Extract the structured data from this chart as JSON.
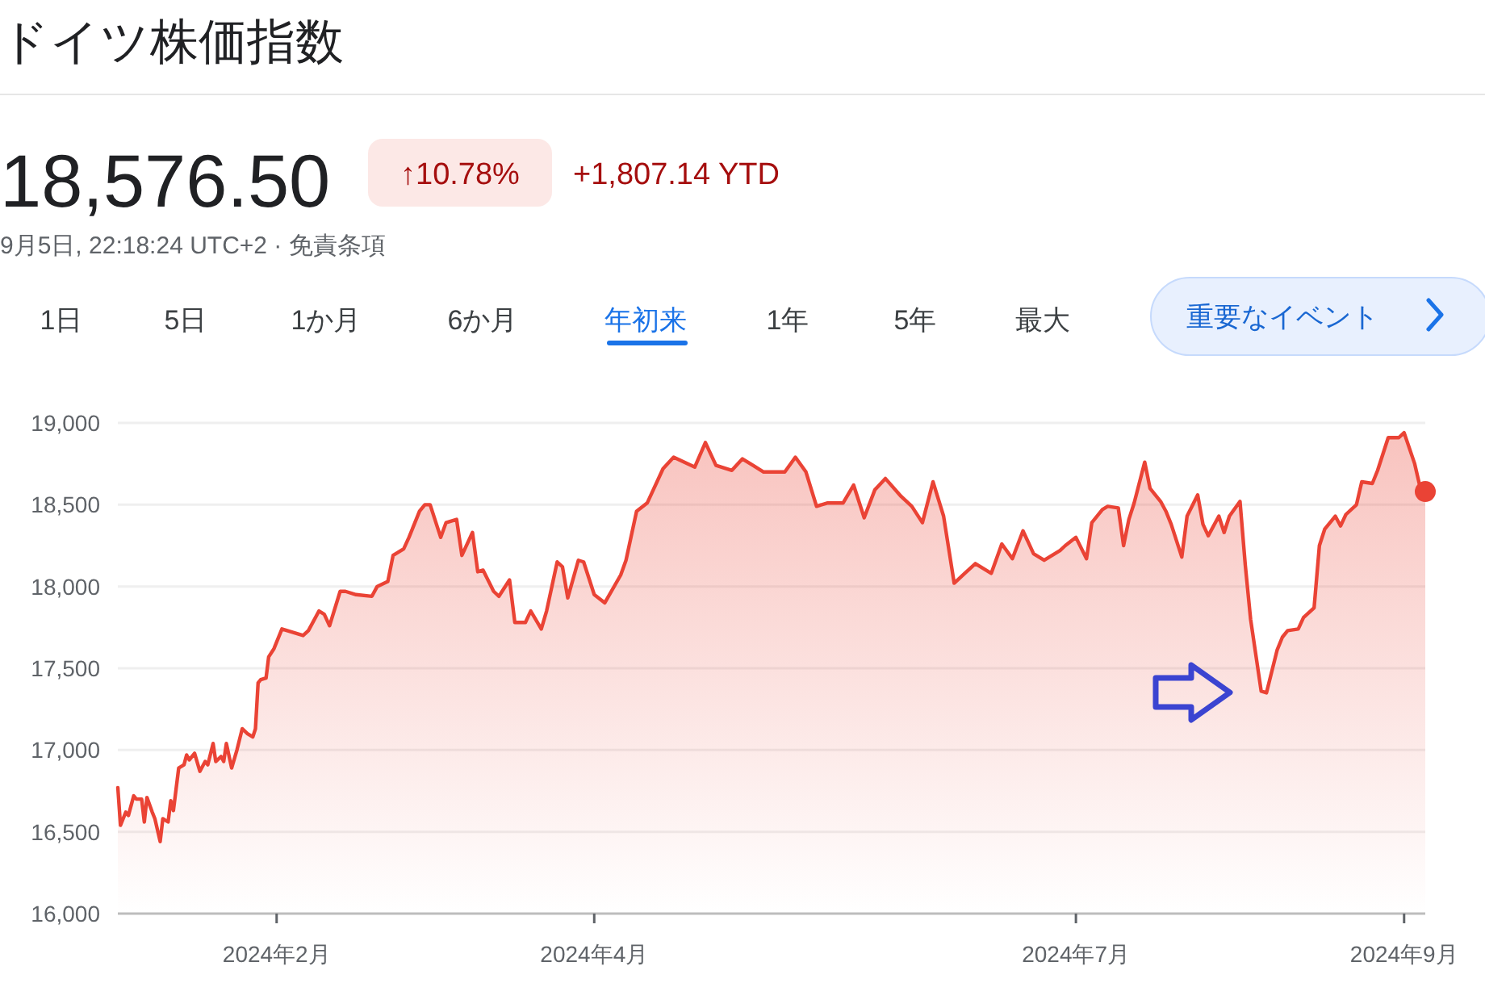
{
  "chart_data": {
    "type": "area",
    "title": "ドイツ株価指数",
    "subtitle": "9月5日, 22:18:24 UTC+2 · 免責条項",
    "annotations": [
      "18,576.50",
      "↑10.78%",
      "+1,807.14 YTD",
      "1日",
      "5日",
      "1か月",
      "6か月",
      "年初来",
      "1年",
      "5年",
      "最大",
      "重要なイベント"
    ],
    "xlim": [
      "2024-01-02",
      "2024-09-05"
    ],
    "xticks": [
      {
        "value": "2024-02-01",
        "label": "2024年2月"
      },
      {
        "value": "2024-04-01",
        "label": "2024年4月"
      },
      {
        "value": "2024-07-01",
        "label": "2024年7月"
      },
      {
        "value": "2024-09-01",
        "label": "2024年9月"
      }
    ],
    "ylim": [
      16000,
      19000
    ],
    "yticks": [
      {
        "value": 16000,
        "label": "16,000"
      },
      {
        "value": 16500,
        "label": "16,500"
      },
      {
        "value": 17000,
        "label": "17,000"
      },
      {
        "value": 17500,
        "label": "17,500"
      },
      {
        "value": 18000,
        "label": "18,000"
      },
      {
        "value": 18500,
        "label": "18,500"
      },
      {
        "value": 19000,
        "label": "19,000"
      }
    ],
    "grid": "y",
    "line_style": "solid",
    "series": [
      {
        "color": "#ea4335",
        "x": [
          "2024-01-02T00:00",
          "2024-01-02T12:00",
          "2024-01-03T12:00",
          "2024-01-04T00:00",
          "2024-01-05T00:00",
          "2024-01-05T12:00",
          "2024-01-06T12:00",
          "2024-01-07T00:00",
          "2024-01-07T12:00",
          "2024-01-08T12:00",
          "2024-01-09T00:00",
          "2024-01-10T00:00",
          "2024-01-10T12:00",
          "2024-01-11T12:00",
          "2024-01-12T00:00",
          "2024-01-12T12:00",
          "2024-01-13T12:00",
          "2024-01-14T12:00",
          "2024-01-15T00:00",
          "2024-01-15T12:00",
          "2024-01-16T12:00",
          "2024-01-17T12:00",
          "2024-01-18T12:00",
          "2024-01-19T00:00",
          "2024-01-20T00:00",
          "2024-01-20T12:00",
          "2024-01-21T12:00",
          "2024-01-22T00:00",
          "2024-01-22T12:00",
          "2024-01-23T12:00",
          "2024-01-24T12:00",
          "2024-01-25T12:00",
          "2024-01-26T12:00",
          "2024-01-27T12:00",
          "2024-01-28T00:00",
          "2024-01-28T12:00",
          "2024-01-29T00:00",
          "2024-01-30T00:00",
          "2024-01-30T12:00",
          "2024-01-31T12:00",
          "2024-02-02",
          "2024-02-06",
          "2024-02-07",
          "2024-02-09",
          "2024-02-10",
          "2024-02-11",
          "2024-02-13",
          "2024-02-14",
          "2024-02-16",
          "2024-02-19",
          "2024-02-20",
          "2024-02-22",
          "2024-02-23",
          "2024-02-25",
          "2024-02-26",
          "2024-02-28",
          "2024-02-29",
          "2024-03-01",
          "2024-03-03",
          "2024-03-04",
          "2024-03-06",
          "2024-03-07",
          "2024-03-09",
          "2024-03-10",
          "2024-03-11",
          "2024-03-13",
          "2024-03-14",
          "2024-03-16",
          "2024-03-17",
          "2024-03-19",
          "2024-03-20",
          "2024-03-22",
          "2024-03-23",
          "2024-03-25",
          "2024-03-26",
          "2024-03-27",
          "2024-03-29",
          "2024-03-30",
          "2024-04-01",
          "2024-04-03",
          "2024-04-06",
          "2024-04-07",
          "2024-04-09",
          "2024-04-11",
          "2024-04-14",
          "2024-04-16",
          "2024-04-20",
          "2024-04-22",
          "2024-04-24",
          "2024-04-27",
          "2024-04-29",
          "2024-05-01",
          "2024-05-03",
          "2024-05-07",
          "2024-05-09",
          "2024-05-11",
          "2024-05-13",
          "2024-05-15",
          "2024-05-18",
          "2024-05-20",
          "2024-05-22",
          "2024-05-24",
          "2024-05-26",
          "2024-05-29",
          "2024-05-31",
          "2024-06-02",
          "2024-06-04",
          "2024-06-06",
          "2024-06-08",
          "2024-06-10",
          "2024-06-12",
          "2024-06-15",
          "2024-06-17",
          "2024-06-19",
          "2024-06-21",
          "2024-06-23",
          "2024-06-25",
          "2024-06-28",
          "2024-06-29",
          "2024-07-01",
          "2024-07-03",
          "2024-07-04",
          "2024-07-06",
          "2024-07-07",
          "2024-07-09",
          "2024-07-10",
          "2024-07-11",
          "2024-07-12",
          "2024-07-14",
          "2024-07-15",
          "2024-07-17",
          "2024-07-18",
          "2024-07-19",
          "2024-07-21",
          "2024-07-22",
          "2024-07-24",
          "2024-07-25",
          "2024-07-26",
          "2024-07-28",
          "2024-07-29",
          "2024-07-30",
          "2024-08-01",
          "2024-08-02",
          "2024-08-03",
          "2024-08-05",
          "2024-08-06",
          "2024-08-08",
          "2024-08-09",
          "2024-08-10",
          "2024-08-12",
          "2024-08-13",
          "2024-08-15",
          "2024-08-16",
          "2024-08-17",
          "2024-08-19",
          "2024-08-20",
          "2024-08-21",
          "2024-08-23",
          "2024-08-24",
          "2024-08-26",
          "2024-08-27",
          "2024-08-29",
          "2024-08-31",
          "2024-09-01",
          "2024-09-03",
          "2024-09-04",
          "2024-09-05"
        ],
        "values": [
          16770,
          16540,
          16620,
          16600,
          16720,
          16700,
          16700,
          16560,
          16710,
          16620,
          16580,
          16440,
          16580,
          16560,
          16690,
          16630,
          16890,
          16910,
          16970,
          16940,
          16980,
          16870,
          16930,
          16910,
          17040,
          16930,
          16960,
          16930,
          17040,
          16890,
          17000,
          17130,
          17100,
          17080,
          17130,
          17410,
          17430,
          17440,
          17570,
          17620,
          17740,
          17700,
          17730,
          17850,
          17830,
          17760,
          17970,
          17970,
          17950,
          17940,
          18000,
          18030,
          18190,
          18230,
          18300,
          18460,
          18500,
          18500,
          18300,
          18390,
          18410,
          18190,
          18330,
          18090,
          18100,
          17970,
          17940,
          18040,
          17780,
          17780,
          17850,
          17740,
          17850,
          18150,
          18120,
          17930,
          18160,
          18150,
          17950,
          17900,
          18070,
          18160,
          18460,
          18510,
          18720,
          18790,
          18730,
          18880,
          18740,
          18710,
          18780,
          18740,
          18700,
          18700,
          18790,
          18700,
          18490,
          18510,
          18510,
          18620,
          18420,
          18590,
          18660,
          18550,
          18490,
          18390,
          18640,
          18430,
          18020,
          18080,
          18140,
          18080,
          18260,
          18170,
          18340,
          18200,
          18160,
          18220,
          18250,
          18300,
          18170,
          18390,
          18470,
          18490,
          18480,
          18250,
          18410,
          18510,
          18760,
          18600,
          18520,
          18460,
          18380,
          18180,
          18430,
          18560,
          18380,
          18310,
          18430,
          18330,
          18430,
          18520,
          18130,
          17800,
          17360,
          17350,
          17610,
          17690,
          17730,
          17740,
          17810,
          17870,
          18250,
          18350,
          18430,
          18370,
          18440,
          18500,
          18640,
          18630,
          18710,
          18910,
          18910,
          18940,
          18750,
          18610,
          18580
        ]
      },
      {
        "type": "scatter",
        "color": "#ea4335",
        "marker": "circle",
        "x": [
          "2024-09-05"
        ],
        "values": [
          18580
        ]
      }
    ]
  }
}
